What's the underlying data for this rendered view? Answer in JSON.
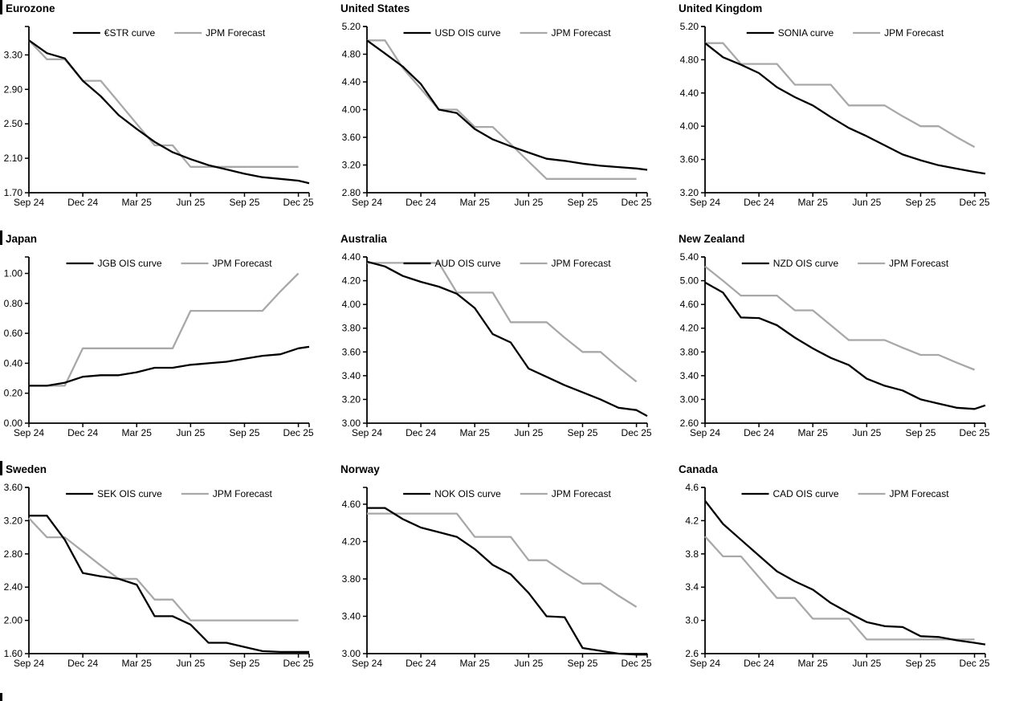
{
  "colors": {
    "background": "#ffffff",
    "axis": "#000000",
    "series_black": "#000000",
    "series_gray": "#a8a8a8",
    "text": "#000000"
  },
  "x_axis": {
    "tick_labels": [
      "Sep 24",
      "Dec 24",
      "Mar 25",
      "Jun 25",
      "Sep 25",
      "Dec 25"
    ],
    "tick_months": [
      0,
      3,
      6,
      9,
      12,
      15
    ],
    "domain": [
      0,
      15.6
    ],
    "unit": "months from Sep 2024, monthly data points; black curve extends to axis end"
  },
  "chart_data": [
    {
      "type": "line",
      "title": "Eurozone",
      "y_ticks": [
        "1.70",
        "2.10",
        "2.50",
        "2.90",
        "3.30"
      ],
      "ylim": [
        1.7,
        3.63
      ],
      "legend_position": "top-center",
      "series": [
        {
          "name": "€STR curve",
          "color": "#000000",
          "values": [
            3.47,
            3.32,
            3.26,
            3.0,
            2.82,
            2.6,
            2.44,
            2.29,
            2.17,
            2.09,
            2.02,
            1.97,
            1.92,
            1.88,
            1.86,
            1.84,
            1.81
          ]
        },
        {
          "name": "JPM Forecast",
          "color": "#a8a8a8",
          "values": [
            3.47,
            3.25,
            3.25,
            3.0,
            3.0,
            2.75,
            2.5,
            2.25,
            2.25,
            2.0,
            2.0,
            2.0,
            2.0,
            2.0,
            2.0,
            2.0
          ]
        }
      ]
    },
    {
      "type": "line",
      "title": "United States",
      "y_ticks": [
        "2.80",
        "3.20",
        "3.60",
        "4.00",
        "4.40",
        "4.80",
        "5.20"
      ],
      "ylim": [
        2.8,
        5.2
      ],
      "legend_position": "top-center",
      "series": [
        {
          "name": "USD OIS curve",
          "color": "#000000",
          "values": [
            5.0,
            4.81,
            4.62,
            4.37,
            4.0,
            3.95,
            3.72,
            3.57,
            3.47,
            3.38,
            3.29,
            3.26,
            3.22,
            3.19,
            3.17,
            3.15,
            3.13
          ]
        },
        {
          "name": "JPM Forecast",
          "color": "#a8a8a8",
          "values": [
            5.0,
            5.0,
            4.6,
            4.3,
            4.0,
            4.0,
            3.75,
            3.75,
            3.5,
            3.25,
            3.0,
            3.0,
            3.0,
            3.0,
            3.0,
            3.0
          ]
        }
      ]
    },
    {
      "type": "line",
      "title": "United Kingdom",
      "y_ticks": [
        "3.20",
        "3.60",
        "4.00",
        "4.40",
        "4.80",
        "5.20"
      ],
      "ylim": [
        3.2,
        5.2
      ],
      "legend_position": "top-center",
      "series": [
        {
          "name": "SONIA curve",
          "color": "#000000",
          "values": [
            5.0,
            4.83,
            4.74,
            4.64,
            4.47,
            4.35,
            4.25,
            4.11,
            3.98,
            3.88,
            3.77,
            3.66,
            3.59,
            3.53,
            3.49,
            3.45,
            3.43
          ]
        },
        {
          "name": "JPM Forecast",
          "color": "#a8a8a8",
          "values": [
            5.0,
            5.0,
            4.75,
            4.75,
            4.75,
            4.5,
            4.5,
            4.5,
            4.25,
            4.25,
            4.25,
            4.12,
            4.0,
            4.0,
            3.87,
            3.75
          ]
        }
      ]
    },
    {
      "type": "line",
      "title": "Japan",
      "y_ticks": [
        "0.00",
        "0.20",
        "0.40",
        "0.60",
        "0.80",
        "1.00"
      ],
      "ylim": [
        0.0,
        1.11
      ],
      "legend_position": "top-center",
      "series": [
        {
          "name": "JGB OIS curve",
          "color": "#000000",
          "values": [
            0.25,
            0.25,
            0.27,
            0.31,
            0.32,
            0.32,
            0.34,
            0.37,
            0.37,
            0.39,
            0.4,
            0.41,
            0.43,
            0.45,
            0.46,
            0.5,
            0.51
          ]
        },
        {
          "name": "JPM Forecast",
          "color": "#a8a8a8",
          "values": [
            0.25,
            0.25,
            0.25,
            0.5,
            0.5,
            0.5,
            0.5,
            0.5,
            0.5,
            0.75,
            0.75,
            0.75,
            0.75,
            0.75,
            0.88,
            1.0
          ]
        }
      ]
    },
    {
      "type": "line",
      "title": "Australia",
      "y_ticks": [
        "3.00",
        "3.20",
        "3.40",
        "3.60",
        "3.80",
        "4.00",
        "4.20",
        "4.40"
      ],
      "ylim": [
        3.0,
        4.4
      ],
      "legend_position": "top-center",
      "series": [
        {
          "name": "AUD OIS curve",
          "color": "#000000",
          "values": [
            4.36,
            4.32,
            4.24,
            4.19,
            4.15,
            4.09,
            3.97,
            3.75,
            3.68,
            3.46,
            3.39,
            3.32,
            3.26,
            3.2,
            3.13,
            3.11,
            3.06
          ]
        },
        {
          "name": "JPM Forecast",
          "color": "#a8a8a8",
          "values": [
            4.35,
            4.35,
            4.35,
            4.35,
            4.35,
            4.1,
            4.1,
            4.1,
            3.85,
            3.85,
            3.85,
            3.72,
            3.6,
            3.6,
            3.47,
            3.35
          ]
        }
      ]
    },
    {
      "type": "line",
      "title": "New Zealand",
      "y_ticks": [
        "2.60",
        "3.00",
        "3.40",
        "3.80",
        "4.20",
        "4.60",
        "5.00",
        "5.40"
      ],
      "ylim": [
        2.6,
        5.4
      ],
      "legend_position": "top-center",
      "series": [
        {
          "name": "NZD OIS curve",
          "color": "#000000",
          "values": [
            4.97,
            4.8,
            4.38,
            4.37,
            4.25,
            4.04,
            3.86,
            3.7,
            3.58,
            3.35,
            3.23,
            3.15,
            3.0,
            2.93,
            2.86,
            2.84,
            2.9
          ]
        },
        {
          "name": "JPM Forecast",
          "color": "#a8a8a8",
          "values": [
            5.24,
            5.0,
            4.75,
            4.75,
            4.75,
            4.5,
            4.5,
            4.25,
            4.0,
            4.0,
            4.0,
            3.87,
            3.75,
            3.75,
            3.62,
            3.5
          ]
        }
      ]
    },
    {
      "type": "line",
      "title": "Sweden",
      "y_ticks": [
        "1.60",
        "2.00",
        "2.40",
        "2.80",
        "3.20",
        "3.60"
      ],
      "ylim": [
        1.6,
        3.6
      ],
      "legend_position": "top-center",
      "series": [
        {
          "name": "SEK OIS curve",
          "color": "#000000",
          "values": [
            3.26,
            3.26,
            2.97,
            2.57,
            2.53,
            2.5,
            2.43,
            2.05,
            2.05,
            1.95,
            1.73,
            1.73,
            1.68,
            1.63,
            1.62,
            1.62,
            1.62
          ]
        },
        {
          "name": "JPM Forecast",
          "color": "#a8a8a8",
          "values": [
            3.23,
            3.0,
            3.0,
            2.83,
            2.66,
            2.5,
            2.5,
            2.25,
            2.25,
            2.0,
            2.0,
            2.0,
            2.0,
            2.0,
            2.0,
            2.0
          ]
        }
      ]
    },
    {
      "type": "line",
      "title": "Norway",
      "y_ticks": [
        "3.00",
        "3.40",
        "3.80",
        "4.20",
        "4.60"
      ],
      "ylim": [
        3.0,
        4.78
      ],
      "legend_position": "top-center",
      "series": [
        {
          "name": "NOK OIS curve",
          "color": "#000000",
          "values": [
            4.56,
            4.56,
            4.44,
            4.35,
            4.3,
            4.25,
            4.12,
            3.95,
            3.85,
            3.65,
            3.4,
            3.39,
            3.06,
            3.03,
            3.0,
            2.99,
            2.99
          ]
        },
        {
          "name": "JPM Forecast",
          "color": "#a8a8a8",
          "values": [
            4.5,
            4.5,
            4.5,
            4.5,
            4.5,
            4.5,
            4.25,
            4.25,
            4.25,
            4.0,
            4.0,
            3.87,
            3.75,
            3.75,
            3.62,
            3.5
          ]
        }
      ]
    },
    {
      "type": "line",
      "title": "Canada",
      "y_ticks": [
        "2.6",
        "3.0",
        "3.4",
        "3.8",
        "4.2",
        "4.6"
      ],
      "ylim": [
        2.6,
        4.6
      ],
      "legend_position": "top-center",
      "series": [
        {
          "name": "CAD OIS curve",
          "color": "#000000",
          "values": [
            4.44,
            4.16,
            3.97,
            3.78,
            3.59,
            3.47,
            3.37,
            3.21,
            3.09,
            2.98,
            2.93,
            2.92,
            2.81,
            2.8,
            2.76,
            2.73,
            2.71
          ]
        },
        {
          "name": "JPM Forecast",
          "color": "#a8a8a8",
          "values": [
            4.01,
            3.77,
            3.77,
            3.52,
            3.27,
            3.27,
            3.02,
            3.02,
            3.02,
            2.77,
            2.77,
            2.77,
            2.77,
            2.77,
            2.77,
            2.77
          ]
        }
      ]
    }
  ]
}
